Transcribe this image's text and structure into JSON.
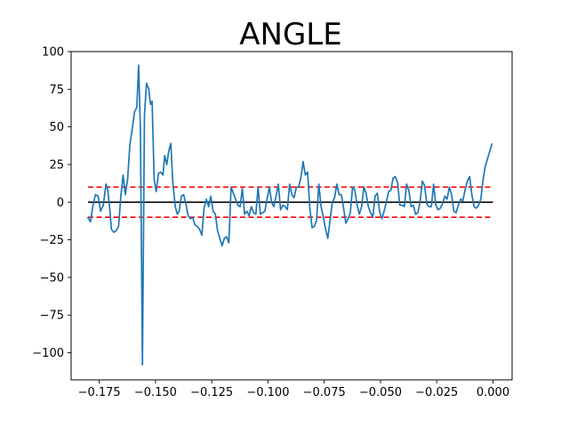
{
  "chart_data": {
    "type": "line",
    "title": "ANGLE",
    "xlabel": "",
    "ylabel": "",
    "xlim": [
      -0.1875,
      0.0085
    ],
    "ylim": [
      -118,
      100
    ],
    "x_ticks": [
      -0.175,
      -0.15,
      -0.125,
      -0.1,
      -0.075,
      -0.05,
      -0.025,
      0.0
    ],
    "x_tick_labels": [
      "−0.175",
      "−0.150",
      "−0.125",
      "−0.100",
      "−0.075",
      "−0.050",
      "−0.025",
      "0.000"
    ],
    "y_ticks": [
      100,
      75,
      50,
      25,
      0,
      -25,
      -50,
      -75,
      -100
    ],
    "y_tick_labels": [
      "100",
      "75",
      "50",
      "25",
      "0",
      "−25",
      "−50",
      "−75",
      "−100"
    ],
    "grid": false,
    "colors": {
      "series": "#1f77b4",
      "zero_line": "#000000",
      "threshold": "#ff0000"
    },
    "reference_lines": [
      {
        "y": 0,
        "style": "solid",
        "x_range": [
          -0.18,
          0.0
        ]
      },
      {
        "y": 10,
        "style": "dashed",
        "x_range": [
          -0.18,
          0.0
        ]
      },
      {
        "y": -10,
        "style": "dashed",
        "x_range": [
          -0.18,
          0.0
        ]
      }
    ],
    "series": [
      {
        "points": [
          [
            -0.1802,
            -10
          ],
          [
            -0.1789,
            -13
          ],
          [
            -0.1779,
            -3
          ],
          [
            -0.1767,
            5
          ],
          [
            -0.1755,
            4
          ],
          [
            -0.1744,
            -6
          ],
          [
            -0.1732,
            -2
          ],
          [
            -0.172,
            12
          ],
          [
            -0.1712,
            8
          ],
          [
            -0.1703,
            -5
          ],
          [
            -0.1696,
            -18
          ],
          [
            -0.1685,
            -20
          ],
          [
            -0.1675,
            -19
          ],
          [
            -0.1664,
            -16
          ],
          [
            -0.1654,
            4
          ],
          [
            -0.1644,
            18
          ],
          [
            -0.1634,
            5
          ],
          [
            -0.1624,
            15
          ],
          [
            -0.1614,
            38
          ],
          [
            -0.1604,
            48
          ],
          [
            -0.1593,
            60
          ],
          [
            -0.1583,
            63
          ],
          [
            -0.1575,
            91
          ],
          [
            -0.1567,
            48
          ],
          [
            -0.1558,
            -108
          ],
          [
            -0.1549,
            58
          ],
          [
            -0.154,
            79
          ],
          [
            -0.153,
            75
          ],
          [
            -0.1522,
            65
          ],
          [
            -0.1515,
            67
          ],
          [
            -0.1506,
            15
          ],
          [
            -0.1497,
            7
          ],
          [
            -0.1487,
            19
          ],
          [
            -0.1477,
            20
          ],
          [
            -0.1467,
            18
          ],
          [
            -0.1459,
            31
          ],
          [
            -0.145,
            25
          ],
          [
            -0.1441,
            34
          ],
          [
            -0.1432,
            39
          ],
          [
            -0.1423,
            13
          ],
          [
            -0.1412,
            -3
          ],
          [
            -0.1403,
            -8
          ],
          [
            -0.1395,
            -6
          ],
          [
            -0.1385,
            4
          ],
          [
            -0.1375,
            5
          ],
          [
            -0.1365,
            -1
          ],
          [
            -0.1355,
            -9
          ],
          [
            -0.1345,
            -11
          ],
          [
            -0.1335,
            -10
          ],
          [
            -0.1325,
            -15
          ],
          [
            -0.1315,
            -16
          ],
          [
            -0.1304,
            -18
          ],
          [
            -0.1294,
            -22
          ],
          [
            -0.1284,
            -4
          ],
          [
            -0.1274,
            2
          ],
          [
            -0.1264,
            -3
          ],
          [
            -0.1254,
            4
          ],
          [
            -0.1244,
            -6
          ],
          [
            -0.1234,
            -8
          ],
          [
            -0.1224,
            -19
          ],
          [
            -0.1214,
            -24
          ],
          [
            -0.1204,
            -29
          ],
          [
            -0.1194,
            -24
          ],
          [
            -0.1184,
            -23
          ],
          [
            -0.1174,
            -27
          ],
          [
            -0.1164,
            10
          ],
          [
            -0.1154,
            6
          ],
          [
            -0.1144,
            2
          ],
          [
            -0.1134,
            -2
          ],
          [
            -0.1124,
            -3
          ],
          [
            -0.1114,
            9
          ],
          [
            -0.1104,
            -8
          ],
          [
            -0.1094,
            -6
          ],
          [
            -0.1084,
            -9
          ],
          [
            -0.1074,
            -3
          ],
          [
            -0.1064,
            -7
          ],
          [
            -0.1054,
            -8
          ],
          [
            -0.1044,
            10
          ],
          [
            -0.1034,
            -8
          ],
          [
            -0.1024,
            -7
          ],
          [
            -0.1014,
            -6
          ],
          [
            -0.1004,
            2
          ],
          [
            -0.0994,
            10
          ],
          [
            -0.0984,
            0
          ],
          [
            -0.0974,
            -3
          ],
          [
            -0.0964,
            4
          ],
          [
            -0.0954,
            12
          ],
          [
            -0.0944,
            -5
          ],
          [
            -0.0934,
            -2
          ],
          [
            -0.0924,
            -3
          ],
          [
            -0.0914,
            -5
          ],
          [
            -0.0904,
            12
          ],
          [
            -0.0894,
            5
          ],
          [
            -0.0884,
            3
          ],
          [
            -0.0874,
            10
          ],
          [
            -0.0864,
            10
          ],
          [
            -0.0854,
            16
          ],
          [
            -0.0844,
            27
          ],
          [
            -0.0834,
            18
          ],
          [
            -0.0824,
            20
          ],
          [
            -0.0814,
            -4
          ],
          [
            -0.0804,
            -17
          ],
          [
            -0.0794,
            -16
          ],
          [
            -0.0784,
            -12
          ],
          [
            -0.0774,
            12
          ],
          [
            -0.0764,
            -3
          ],
          [
            -0.0754,
            -10
          ],
          [
            -0.0744,
            -18
          ],
          [
            -0.0734,
            -24
          ],
          [
            -0.0724,
            -12
          ],
          [
            -0.0714,
            0
          ],
          [
            -0.0704,
            3
          ],
          [
            -0.0694,
            12
          ],
          [
            -0.0684,
            5
          ],
          [
            -0.0674,
            5
          ],
          [
            -0.0664,
            -4
          ],
          [
            -0.0654,
            -14
          ],
          [
            -0.0644,
            -11
          ],
          [
            -0.0634,
            -7
          ],
          [
            -0.0624,
            10
          ],
          [
            -0.0614,
            8
          ],
          [
            -0.0604,
            -2
          ],
          [
            -0.0594,
            -8
          ],
          [
            -0.0584,
            -3
          ],
          [
            -0.0574,
            10
          ],
          [
            -0.0564,
            6
          ],
          [
            -0.0554,
            -3
          ],
          [
            -0.0544,
            -7
          ],
          [
            -0.0534,
            -10
          ],
          [
            -0.0524,
            4
          ],
          [
            -0.0514,
            6
          ],
          [
            -0.0504,
            -6
          ],
          [
            -0.0494,
            -11
          ],
          [
            -0.0484,
            -6
          ],
          [
            -0.0474,
            0
          ],
          [
            -0.0464,
            7
          ],
          [
            -0.0454,
            8
          ],
          [
            -0.0444,
            16
          ],
          [
            -0.0434,
            17
          ],
          [
            -0.0424,
            13
          ],
          [
            -0.0414,
            -2
          ],
          [
            -0.0404,
            -2
          ],
          [
            -0.0394,
            -3
          ],
          [
            -0.0384,
            12
          ],
          [
            -0.0374,
            8
          ],
          [
            -0.0364,
            -3
          ],
          [
            -0.0354,
            -2
          ],
          [
            -0.0344,
            -8
          ],
          [
            -0.0334,
            -7
          ],
          [
            -0.0324,
            0
          ],
          [
            -0.0314,
            14
          ],
          [
            -0.0304,
            11
          ],
          [
            -0.0294,
            -1
          ],
          [
            -0.0284,
            -3
          ],
          [
            -0.0274,
            -3
          ],
          [
            -0.0264,
            12
          ],
          [
            -0.0254,
            -2
          ],
          [
            -0.0244,
            -5
          ],
          [
            -0.0234,
            -4
          ],
          [
            -0.0224,
            -1
          ],
          [
            -0.0214,
            4
          ],
          [
            -0.0204,
            2
          ],
          [
            -0.0194,
            10
          ],
          [
            -0.0184,
            5
          ],
          [
            -0.0174,
            -6
          ],
          [
            -0.0164,
            -7
          ],
          [
            -0.0154,
            -2
          ],
          [
            -0.0144,
            2
          ],
          [
            -0.0134,
            1
          ],
          [
            -0.0124,
            8
          ],
          [
            -0.0114,
            14
          ],
          [
            -0.0104,
            17
          ],
          [
            -0.0094,
            5
          ],
          [
            -0.0084,
            -3
          ],
          [
            -0.0074,
            -4
          ],
          [
            -0.0064,
            -2
          ],
          [
            -0.0054,
            2
          ],
          [
            -0.0044,
            15
          ],
          [
            -0.0034,
            24
          ],
          [
            -0.0024,
            29
          ],
          [
            -0.0014,
            34
          ],
          [
            -0.0004,
            39
          ]
        ]
      }
    ]
  }
}
